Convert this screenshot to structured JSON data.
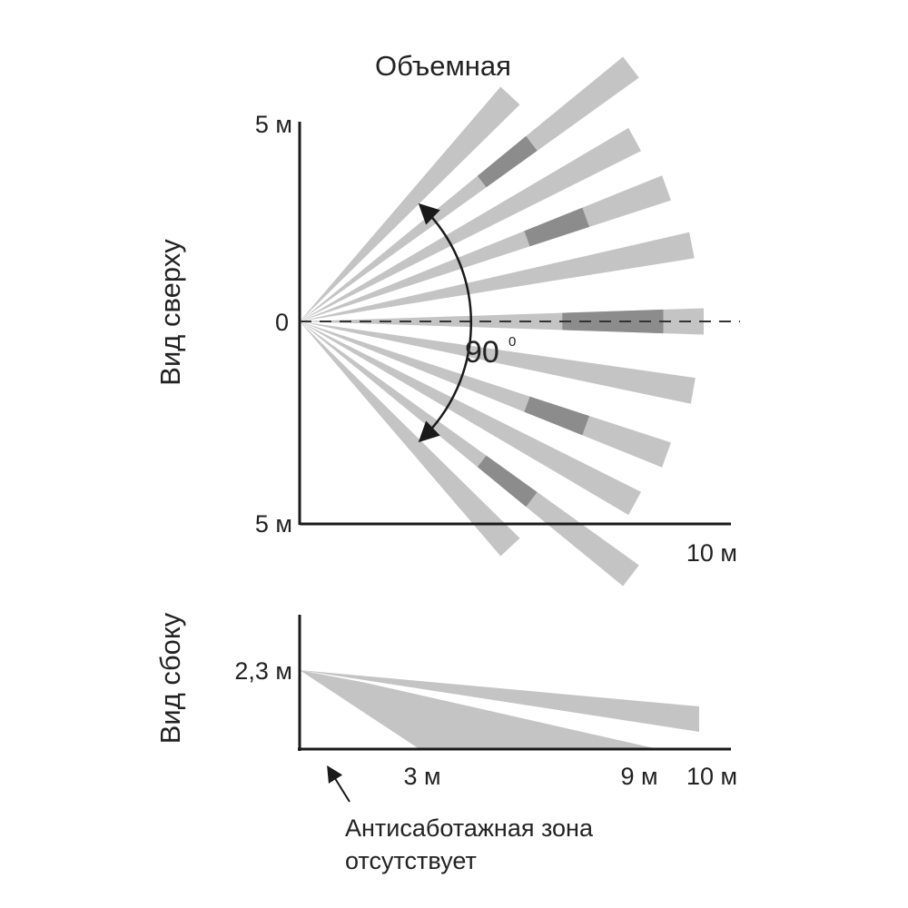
{
  "title": "Объемная",
  "top_view": {
    "side_label": "Вид сверху",
    "y_top_label": "5 м",
    "y_mid_label": "0",
    "y_bottom_label": "5 м",
    "x_end_label": "10 м",
    "angle_value": "90",
    "angle_unit": "0",
    "beam_count": 11,
    "colors": {
      "beam": "#c4c4c4",
      "beam_core": "#8c8c8c",
      "axis": "#1a1a1a"
    }
  },
  "side_view": {
    "side_label": "Вид сбоку",
    "height_label": "2,3 м",
    "x_labels": [
      "3 м",
      "9 м",
      "10 м"
    ],
    "note_line1": "Антисаботажная зона",
    "note_line2": "отсутствует"
  }
}
